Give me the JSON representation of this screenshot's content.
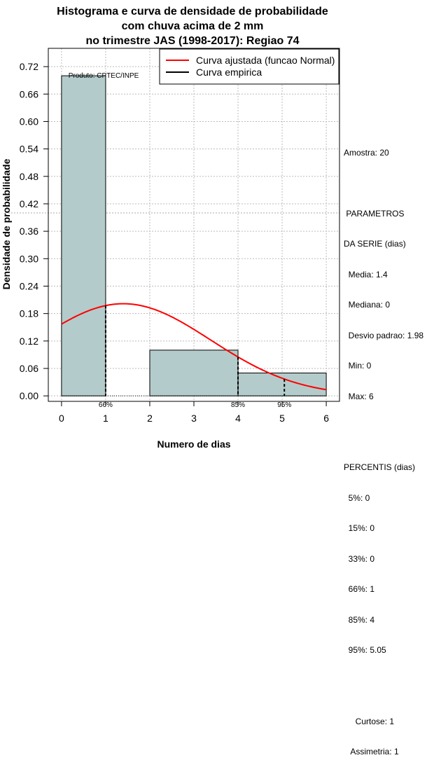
{
  "chart_data": {
    "type": "histogram",
    "title": [
      "Histograma e curva de densidade de probabilidade",
      "com chuva acima de 2 mm",
      "no trimestre JAS (1998-2017): Regiao 74"
    ],
    "xlabel": "Numero de dias",
    "ylabel": "Densidade de probabilidade",
    "xlim": [
      -0.3,
      6.3
    ],
    "ylim": [
      -0.012,
      0.76
    ],
    "xticks": [
      0,
      1,
      2,
      3,
      4,
      5,
      6
    ],
    "yticks": [
      0.0,
      0.06,
      0.12,
      0.18,
      0.24,
      0.3,
      0.36,
      0.42,
      0.48,
      0.54,
      0.6,
      0.66,
      0.72
    ],
    "ytick_labels": [
      "0.00",
      "0.06",
      "0.12",
      "0.18",
      "0.24",
      "0.30",
      "0.36",
      "0.42",
      "0.48",
      "0.54",
      "0.60",
      "0.66",
      "0.72"
    ],
    "bins": [
      {
        "x0": 0,
        "x1": 1,
        "density": 0.7
      },
      {
        "x0": 1,
        "x1": 2,
        "density": 0.0
      },
      {
        "x0": 2,
        "x1": 4,
        "density": 0.1
      },
      {
        "x0": 4,
        "x1": 6,
        "density": 0.05
      }
    ],
    "fitted_curve": {
      "name": "Curva ajustada (funcao Normal)",
      "distribution": "normal",
      "mean": 1.4,
      "sd": 1.98,
      "x_range": [
        0,
        6
      ],
      "color": "#ff0000"
    },
    "empirical_curve": {
      "name": "Curva empirica",
      "color": "#000000"
    },
    "percentile_markers": [
      {
        "label": "66%",
        "x": 1
      },
      {
        "label": "85%",
        "x": 4
      },
      {
        "label": "95%",
        "x": 5.05
      }
    ],
    "reference_hline": 0.4,
    "annotation": "Produto: CPTEC/INPE",
    "legend_position": "top-right",
    "grid": true,
    "bar_color": "#b4cbcb"
  },
  "stats": {
    "sample": "Amostra: 20",
    "params_header": [
      " PARAMETROS",
      "DA SERIE (dias)"
    ],
    "params": [
      "  Media: 1.4",
      "  Mediana: 0",
      "  Desvio padrao: 1.98",
      "  Min: 0",
      "  Max: 6"
    ],
    "percentiles_header": "PERCENTIS (dias)",
    "percentiles": [
      "  5%: 0",
      "  15%: 0",
      "  33%: 0",
      "  66%: 1",
      "  85%: 4",
      "  95%: 5.05"
    ],
    "shape": [
      "     Curtose: 1",
      "   Assimetria: 1"
    ]
  }
}
